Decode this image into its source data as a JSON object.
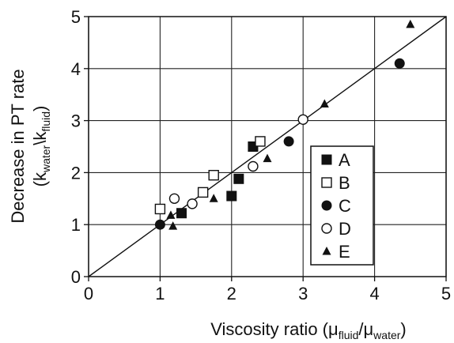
{
  "chart_data": {
    "type": "scatter",
    "title": "",
    "xlabel": "Viscosity ratio (μfluid/μwater)",
    "xlabel_parts": {
      "base": "Viscosity ratio (μ",
      "sub1": "fluid",
      "mid": "/μ",
      "sub2": "water",
      "end": ")"
    },
    "ylabel_line1": "Decrease in PT rate",
    "ylabel_line2": "(kwater\\kfluid)",
    "ylabel_line2_parts": {
      "open": "(k",
      "sub1": "water",
      "mid": "\\k",
      "sub2": "fluid",
      "close": ")"
    },
    "xlim": [
      0,
      5
    ],
    "ylim": [
      0,
      5
    ],
    "xticks": [
      "0",
      "1",
      "2",
      "3",
      "4",
      "5"
    ],
    "yticks": [
      "0",
      "1",
      "2",
      "3",
      "4",
      "5"
    ],
    "grid": true,
    "legend_position": "right",
    "reference_line": {
      "x": [
        0,
        5
      ],
      "y": [
        0,
        5
      ]
    },
    "series": [
      {
        "name": "A",
        "marker": "filled-square",
        "x": [
          1.3,
          2.0,
          2.1,
          2.3
        ],
        "y": [
          1.22,
          1.55,
          1.88,
          2.5
        ]
      },
      {
        "name": "B",
        "marker": "open-square",
        "x": [
          1.0,
          1.6,
          1.75,
          2.4
        ],
        "y": [
          1.3,
          1.62,
          1.95,
          2.6
        ]
      },
      {
        "name": "C",
        "marker": "filled-circle",
        "x": [
          1.0,
          2.8,
          4.35
        ],
        "y": [
          1.0,
          2.6,
          4.1
        ]
      },
      {
        "name": "D",
        "marker": "open-circle",
        "x": [
          1.2,
          1.45,
          2.3,
          3.0
        ],
        "y": [
          1.5,
          1.4,
          2.12,
          3.02
        ]
      },
      {
        "name": "E",
        "marker": "filled-triangle",
        "x": [
          1.15,
          1.18,
          1.75,
          2.5,
          3.3,
          4.5
        ],
        "y": [
          1.18,
          0.97,
          1.5,
          2.27,
          3.32,
          4.85
        ]
      }
    ]
  }
}
